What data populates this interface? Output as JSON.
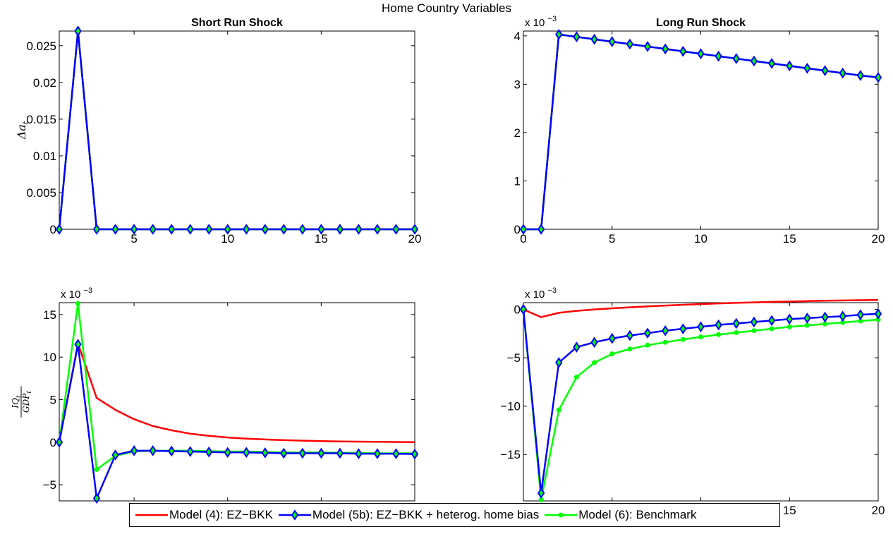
{
  "figure": {
    "title": "Home Country Variables",
    "legend": [
      {
        "label": "Model (4): EZ−BKK",
        "color": "#ff0000",
        "marker": "none"
      },
      {
        "label": "Model (5b): EZ−BKK + heterog. home bias",
        "color": "#0000ff",
        "marker": "diamond"
      },
      {
        "label": "Model (6): Benchmark",
        "color": "#00ff00",
        "marker": "dot"
      }
    ]
  },
  "chart_data": [
    {
      "type": "line",
      "title": "Short Run Shock",
      "xlabel": "",
      "ylabel": "Δa_t",
      "xlim": [
        1,
        20
      ],
      "ylim": [
        0,
        0.027
      ],
      "xticks": [
        5,
        10,
        15,
        20
      ],
      "yticks": [
        0,
        0.005,
        0.01,
        0.015,
        0.02,
        0.025
      ],
      "ytick_labels": [
        "0",
        "0.005",
        "0.01",
        "0.015",
        "0.02",
        "0.025"
      ],
      "exponent_label": "",
      "x": [
        1,
        2,
        3,
        4,
        5,
        6,
        7,
        8,
        9,
        10,
        11,
        12,
        13,
        14,
        15,
        16,
        17,
        18,
        19,
        20
      ],
      "series": [
        {
          "name": "Model (4): EZ−BKK",
          "color": "#ff0000",
          "marker": "none",
          "values": [
            0,
            0.027,
            0,
            0,
            0,
            0,
            0,
            0,
            0,
            0,
            0,
            0,
            0,
            0,
            0,
            0,
            0,
            0,
            0,
            0
          ]
        },
        {
          "name": "Model (6): Benchmark",
          "color": "#00ff00",
          "marker": "dot",
          "values": [
            0,
            0.027,
            0,
            0,
            0,
            0,
            0,
            0,
            0,
            0,
            0,
            0,
            0,
            0,
            0,
            0,
            0,
            0,
            0,
            0
          ]
        },
        {
          "name": "Model (5b): EZ−BKK + heterog. home bias",
          "color": "#0000ff",
          "marker": "diamond",
          "values": [
            0,
            0.027,
            0,
            0,
            0,
            0,
            0,
            0,
            0,
            0,
            0,
            0,
            0,
            0,
            0,
            0,
            0,
            0,
            0,
            0
          ]
        }
      ]
    },
    {
      "type": "line",
      "title": "Long Run Shock",
      "xlabel": "",
      "ylabel": "",
      "xlim": [
        0,
        20
      ],
      "ylim": [
        0,
        4.1
      ],
      "xticks": [
        0,
        5,
        10,
        15,
        20
      ],
      "yticks": [
        0,
        1,
        2,
        3,
        4
      ],
      "ytick_labels": [
        "0",
        "1",
        "2",
        "3",
        "4"
      ],
      "exponent_label": "x 10",
      "exponent_power": "−3",
      "x": [
        0,
        1,
        2,
        3,
        4,
        5,
        6,
        7,
        8,
        9,
        10,
        11,
        12,
        13,
        14,
        15,
        16,
        17,
        18,
        19,
        20
      ],
      "series": [
        {
          "name": "Model (4): EZ−BKK",
          "color": "#ff0000",
          "marker": "none",
          "values": [
            0,
            0,
            4.03,
            3.98,
            3.93,
            3.88,
            3.83,
            3.78,
            3.73,
            3.68,
            3.63,
            3.58,
            3.53,
            3.48,
            3.43,
            3.38,
            3.33,
            3.28,
            3.23,
            3.18,
            3.14
          ]
        },
        {
          "name": "Model (6): Benchmark",
          "color": "#00ff00",
          "marker": "dot",
          "values": [
            0,
            0,
            4.03,
            3.98,
            3.93,
            3.88,
            3.83,
            3.78,
            3.73,
            3.68,
            3.63,
            3.58,
            3.53,
            3.48,
            3.43,
            3.38,
            3.33,
            3.28,
            3.23,
            3.18,
            3.14
          ]
        },
        {
          "name": "Model (5b): EZ−BKK + heterog. home bias",
          "color": "#0000ff",
          "marker": "diamond",
          "values": [
            0,
            0,
            4.03,
            3.98,
            3.93,
            3.88,
            3.83,
            3.78,
            3.73,
            3.68,
            3.63,
            3.58,
            3.53,
            3.48,
            3.43,
            3.38,
            3.33,
            3.28,
            3.23,
            3.18,
            3.14
          ]
        }
      ]
    },
    {
      "type": "line",
      "title": "",
      "xlabel": "",
      "ylabel": "IQ_t / GDP_t",
      "xlim": [
        1,
        20
      ],
      "ylim": [
        -6.9,
        16.4
      ],
      "xticks": [
        5,
        10,
        15,
        20
      ],
      "yticks": [
        -5,
        0,
        5,
        10,
        15
      ],
      "ytick_labels": [
        "−5",
        "0",
        "5",
        "10",
        "15"
      ],
      "exponent_label": "x 10",
      "exponent_power": "−3",
      "x": [
        1,
        2,
        3,
        4,
        5,
        6,
        7,
        8,
        9,
        10,
        11,
        12,
        13,
        14,
        15,
        16,
        17,
        18,
        19,
        20
      ],
      "series": [
        {
          "name": "Model (4): EZ−BKK",
          "color": "#ff0000",
          "marker": "none",
          "values": [
            0,
            11.6,
            5.2,
            3.8,
            2.7,
            1.9,
            1.4,
            1.0,
            0.75,
            0.55,
            0.42,
            0.32,
            0.24,
            0.18,
            0.13,
            0.09,
            0.06,
            0.04,
            0.02,
            0
          ]
        },
        {
          "name": "Model (6): Benchmark",
          "color": "#00ff00",
          "marker": "dot",
          "values": [
            0,
            16.3,
            -3.2,
            -1.6,
            -1.1,
            -1.0,
            -1.0,
            -1.0,
            -1.05,
            -1.1,
            -1.1,
            -1.15,
            -1.2,
            -1.2,
            -1.2,
            -1.25,
            -1.25,
            -1.3,
            -1.3,
            -1.3
          ]
        },
        {
          "name": "Model (5b): EZ−BKK + heterog. home bias",
          "color": "#0000ff",
          "marker": "diamond",
          "values": [
            0,
            11.5,
            -6.6,
            -1.5,
            -1.0,
            -1.0,
            -1.05,
            -1.1,
            -1.15,
            -1.2,
            -1.2,
            -1.25,
            -1.3,
            -1.3,
            -1.3,
            -1.3,
            -1.35,
            -1.35,
            -1.35,
            -1.4
          ]
        }
      ]
    },
    {
      "type": "line",
      "title": "",
      "xlabel": "",
      "ylabel": "",
      "xlim": [
        0,
        20
      ],
      "ylim": [
        -19.8,
        0.7
      ],
      "xticks": [
        0,
        5,
        10,
        15,
        20
      ],
      "yticks": [
        -15,
        -10,
        -5,
        0
      ],
      "ytick_labels": [
        "−15",
        "−10",
        "−5",
        "0"
      ],
      "exponent_label": "x 10",
      "exponent_power": "−3",
      "x": [
        0,
        1,
        2,
        3,
        4,
        5,
        6,
        7,
        8,
        9,
        10,
        11,
        12,
        13,
        14,
        15,
        16,
        17,
        18,
        19,
        20
      ],
      "series": [
        {
          "name": "Model (4): EZ−BKK",
          "color": "#ff0000",
          "marker": "none",
          "values": [
            0,
            -0.8,
            -0.35,
            -0.15,
            0.0,
            0.12,
            0.22,
            0.32,
            0.4,
            0.48,
            0.55,
            0.62,
            0.68,
            0.73,
            0.78,
            0.82,
            0.86,
            0.9,
            0.93,
            0.96,
            0.98
          ]
        },
        {
          "name": "Model (6): Benchmark",
          "color": "#00ff00",
          "marker": "dot",
          "values": [
            0,
            -19.7,
            -10.4,
            -7.0,
            -5.5,
            -4.6,
            -4.1,
            -3.7,
            -3.4,
            -3.1,
            -2.85,
            -2.6,
            -2.4,
            -2.2,
            -2.0,
            -1.8,
            -1.65,
            -1.5,
            -1.35,
            -1.2,
            -1.05
          ]
        },
        {
          "name": "Model (5b): EZ−BKK + heterog. home bias",
          "color": "#0000ff",
          "marker": "diamond",
          "values": [
            0,
            -19.0,
            -5.5,
            -3.9,
            -3.4,
            -3.0,
            -2.7,
            -2.45,
            -2.2,
            -2.0,
            -1.8,
            -1.6,
            -1.45,
            -1.3,
            -1.15,
            -1.0,
            -0.9,
            -0.8,
            -0.7,
            -0.55,
            -0.45
          ]
        }
      ]
    }
  ]
}
